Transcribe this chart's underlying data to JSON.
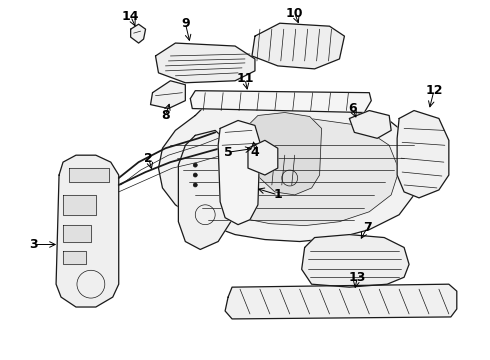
{
  "background_color": "#ffffff",
  "line_color": "#1a1a1a",
  "text_color": "#000000",
  "figure_width": 4.9,
  "figure_height": 3.6,
  "dpi": 100,
  "label_fontsize": 9,
  "label_fontweight": "bold",
  "labels_info": {
    "14": {
      "lpos": [
        0.27,
        0.94
      ],
      "apos": [
        0.285,
        0.91
      ]
    },
    "9": {
      "lpos": [
        0.355,
        0.885
      ],
      "apos": [
        0.37,
        0.855
      ]
    },
    "10": {
      "lpos": [
        0.51,
        0.93
      ],
      "apos": [
        0.53,
        0.9
      ]
    },
    "8": {
      "lpos": [
        0.22,
        0.72
      ],
      "apos": [
        0.245,
        0.748
      ]
    },
    "11": {
      "lpos": [
        0.43,
        0.8
      ],
      "apos": [
        0.43,
        0.778
      ]
    },
    "6": {
      "lpos": [
        0.57,
        0.68
      ],
      "apos": [
        0.56,
        0.66
      ]
    },
    "12": {
      "lpos": [
        0.75,
        0.715
      ],
      "apos": [
        0.735,
        0.7
      ]
    },
    "2": {
      "lpos": [
        0.305,
        0.555
      ],
      "apos": [
        0.315,
        0.535
      ]
    },
    "5": {
      "lpos": [
        0.38,
        0.53
      ],
      "apos": [
        0.392,
        0.51
      ]
    },
    "4": {
      "lpos": [
        0.42,
        0.53
      ],
      "apos": [
        0.425,
        0.51
      ]
    },
    "1": {
      "lpos": [
        0.52,
        0.49
      ],
      "apos": [
        0.5,
        0.47
      ]
    },
    "3": {
      "lpos": [
        0.095,
        0.415
      ],
      "apos": [
        0.14,
        0.415
      ]
    },
    "7": {
      "lpos": [
        0.615,
        0.37
      ],
      "apos": [
        0.6,
        0.39
      ]
    },
    "13": {
      "lpos": [
        0.58,
        0.16
      ],
      "apos": [
        0.57,
        0.178
      ]
    }
  }
}
